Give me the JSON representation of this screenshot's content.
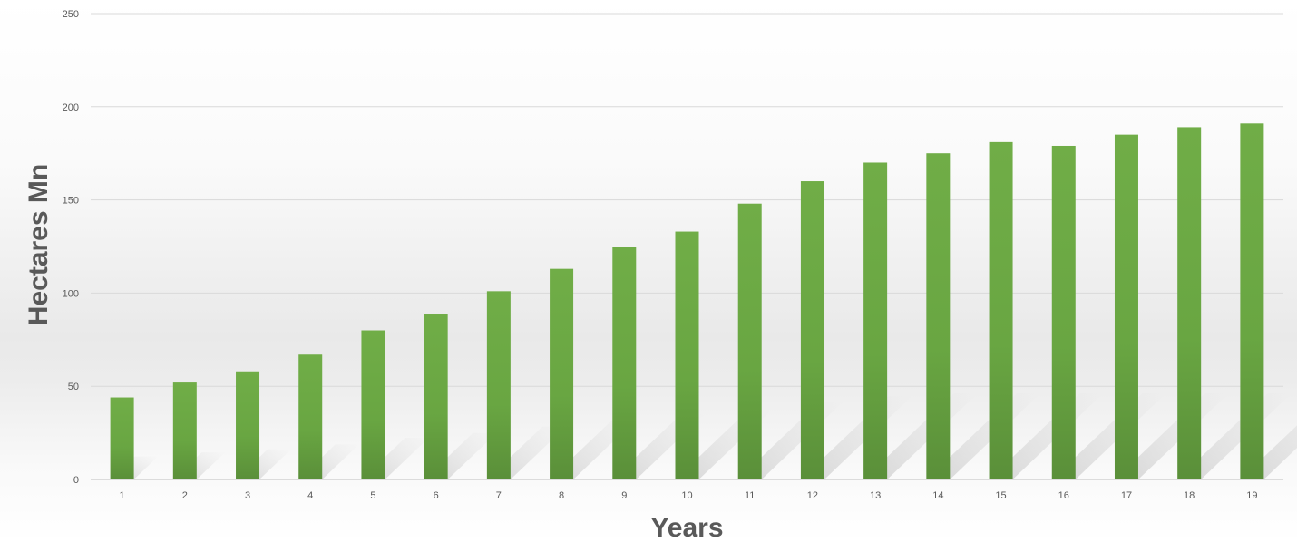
{
  "chart_data": {
    "type": "bar",
    "title": "",
    "xlabel": "Years",
    "ylabel": "Hectares Mn",
    "categories": [
      "1",
      "2",
      "3",
      "4",
      "5",
      "6",
      "7",
      "8",
      "9",
      "10",
      "11",
      "12",
      "13",
      "14",
      "15",
      "16",
      "17",
      "18",
      "19"
    ],
    "series": [
      {
        "values": [
          44,
          52,
          58,
          67,
          80,
          89,
          101,
          113,
          125,
          133,
          148,
          160,
          170,
          175,
          181,
          179,
          185,
          189,
          191
        ]
      }
    ],
    "ylim": [
      0,
      250
    ],
    "yticks": [
      "0",
      "50",
      "100",
      "150",
      "200",
      "250"
    ],
    "grid": true,
    "legend": "none",
    "bar_color": "#70ad47",
    "bar_color_dark": "#5a8f39"
  }
}
